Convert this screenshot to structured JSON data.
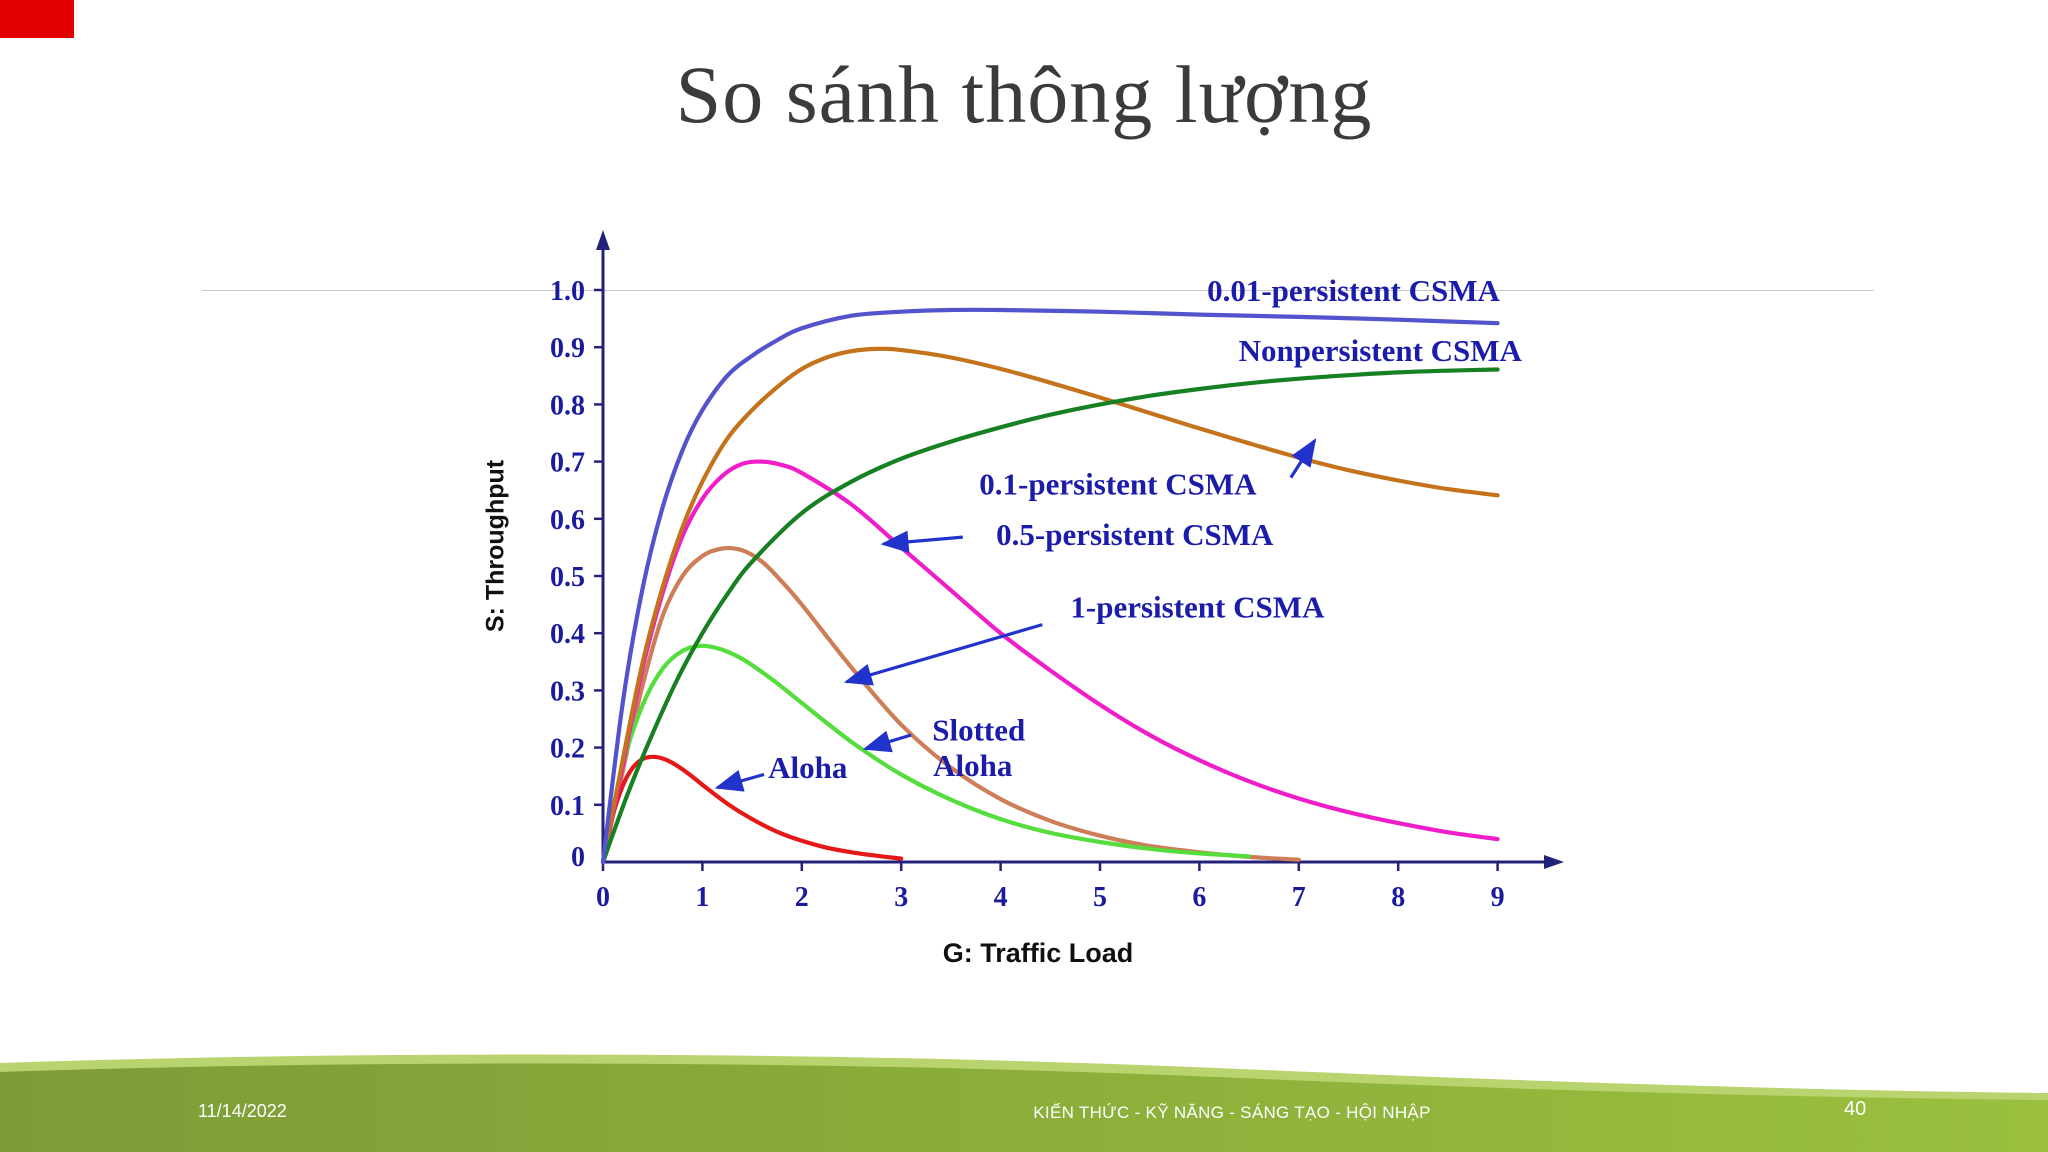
{
  "slide": {
    "title": "So sánh thông lượng",
    "footer": {
      "date": "11/14/2022",
      "center_text": "KIẾN THỨC - KỸ NĂNG - SÁNG TẠO - HỘI NHẬP",
      "page_number": "40"
    },
    "colors": {
      "accent_red": "#e30000",
      "title_color": "#3b3b3b",
      "divider": "#c9c9c9",
      "footer_green_dark": "#7d9c37",
      "footer_green_light": "#9ac03e",
      "footer_green_edge": "#b9d36e"
    }
  },
  "chart_data": {
    "type": "line",
    "title": "",
    "xlabel": "G: Traffic Load",
    "ylabel": "S: Throughput",
    "xlim": [
      0,
      9.5
    ],
    "ylim": [
      0,
      1.05
    ],
    "x_ticks": [
      0,
      1,
      2,
      3,
      4,
      5,
      6,
      7,
      8,
      9
    ],
    "y_ticks": [
      0,
      0.1,
      0.2,
      0.3,
      0.4,
      0.5,
      0.6,
      0.7,
      0.8,
      0.9,
      1.0
    ],
    "y_tick_labels": [
      "0",
      "0.1",
      "0.2",
      "0.3",
      "0.4",
      "0.5",
      "0.6",
      "0.7",
      "0.8",
      "0.9",
      "1.0"
    ],
    "grid": false,
    "legend": "inline-annotations",
    "axis_color": "#22227a",
    "tick_label_color": "#1b1b9e",
    "annotation_color": "#1c1caa",
    "arrow_color": "#2233cc",
    "series": [
      {
        "name": "1-persistent CSMA",
        "color": "#cd7d57",
        "points": [
          [
            0,
            0
          ],
          [
            0.2,
            0.16
          ],
          [
            0.4,
            0.31
          ],
          [
            0.6,
            0.43
          ],
          [
            0.8,
            0.5
          ],
          [
            1,
            0.535
          ],
          [
            1.2,
            0.548
          ],
          [
            1.4,
            0.545
          ],
          [
            1.6,
            0.525
          ],
          [
            1.8,
            0.49
          ],
          [
            2,
            0.45
          ],
          [
            2.5,
            0.34
          ],
          [
            3,
            0.24
          ],
          [
            3.5,
            0.165
          ],
          [
            4,
            0.11
          ],
          [
            4.5,
            0.072
          ],
          [
            5,
            0.046
          ],
          [
            5.5,
            0.028
          ],
          [
            6,
            0.017
          ],
          [
            6.5,
            0.009
          ],
          [
            7,
            0.004
          ]
        ]
      },
      {
        "name": "Slotted Aloha",
        "color": "#55dd3d",
        "points": [
          [
            0,
            0
          ],
          [
            0.2,
            0.17
          ],
          [
            0.4,
            0.275
          ],
          [
            0.6,
            0.338
          ],
          [
            0.8,
            0.369
          ],
          [
            1,
            0.378
          ],
          [
            1.2,
            0.371
          ],
          [
            1.4,
            0.355
          ],
          [
            1.6,
            0.332
          ],
          [
            1.8,
            0.306
          ],
          [
            2,
            0.278
          ],
          [
            2.5,
            0.21
          ],
          [
            3,
            0.153
          ],
          [
            3.5,
            0.109
          ],
          [
            4,
            0.075
          ],
          [
            4.5,
            0.051
          ],
          [
            5,
            0.035
          ],
          [
            5.5,
            0.023
          ],
          [
            6,
            0.015
          ],
          [
            6.5,
            0.01
          ]
        ]
      },
      {
        "name": "Aloha",
        "color": "#e61717",
        "points": [
          [
            0,
            0
          ],
          [
            0.1,
            0.082
          ],
          [
            0.2,
            0.134
          ],
          [
            0.3,
            0.165
          ],
          [
            0.4,
            0.18
          ],
          [
            0.5,
            0.184
          ],
          [
            0.6,
            0.181
          ],
          [
            0.7,
            0.173
          ],
          [
            0.8,
            0.162
          ],
          [
            0.9,
            0.149
          ],
          [
            1,
            0.135
          ],
          [
            1.25,
            0.102
          ],
          [
            1.5,
            0.075
          ],
          [
            1.75,
            0.053
          ],
          [
            2,
            0.037
          ],
          [
            2.25,
            0.025
          ],
          [
            2.5,
            0.017
          ],
          [
            2.75,
            0.011
          ],
          [
            3,
            0.006
          ]
        ]
      },
      {
        "name": "0.5-persistent CSMA",
        "color": "#ef1ec9",
        "points": [
          [
            0,
            0
          ],
          [
            0.2,
            0.17
          ],
          [
            0.4,
            0.34
          ],
          [
            0.6,
            0.47
          ],
          [
            0.8,
            0.57
          ],
          [
            1,
            0.635
          ],
          [
            1.2,
            0.675
          ],
          [
            1.4,
            0.696
          ],
          [
            1.6,
            0.7
          ],
          [
            1.8,
            0.694
          ],
          [
            2,
            0.68
          ],
          [
            2.5,
            0.625
          ],
          [
            3,
            0.55
          ],
          [
            3.5,
            0.475
          ],
          [
            4,
            0.4
          ],
          [
            4.5,
            0.335
          ],
          [
            5,
            0.275
          ],
          [
            5.5,
            0.222
          ],
          [
            6,
            0.178
          ],
          [
            6.5,
            0.141
          ],
          [
            7,
            0.111
          ],
          [
            7.5,
            0.087
          ],
          [
            8,
            0.068
          ],
          [
            8.5,
            0.052
          ],
          [
            9,
            0.04
          ]
        ]
      },
      {
        "name": "0.1-persistent CSMA",
        "color": "#c4731c",
        "points": [
          [
            0,
            0
          ],
          [
            0.2,
            0.18
          ],
          [
            0.4,
            0.35
          ],
          [
            0.6,
            0.48
          ],
          [
            0.8,
            0.585
          ],
          [
            1,
            0.665
          ],
          [
            1.25,
            0.74
          ],
          [
            1.5,
            0.79
          ],
          [
            1.75,
            0.83
          ],
          [
            2,
            0.862
          ],
          [
            2.25,
            0.882
          ],
          [
            2.5,
            0.893
          ],
          [
            2.75,
            0.897
          ],
          [
            3,
            0.895
          ],
          [
            3.5,
            0.882
          ],
          [
            4,
            0.862
          ],
          [
            4.5,
            0.838
          ],
          [
            5,
            0.812
          ],
          [
            5.5,
            0.785
          ],
          [
            6,
            0.758
          ],
          [
            6.5,
            0.732
          ],
          [
            7,
            0.707
          ],
          [
            7.5,
            0.685
          ],
          [
            8,
            0.667
          ],
          [
            8.5,
            0.652
          ],
          [
            9,
            0.641
          ]
        ]
      },
      {
        "name": "Nonpersistent CSMA",
        "color": "#168022",
        "points": [
          [
            0,
            0
          ],
          [
            0.25,
            0.12
          ],
          [
            0.5,
            0.225
          ],
          [
            0.75,
            0.32
          ],
          [
            1,
            0.4
          ],
          [
            1.25,
            0.468
          ],
          [
            1.5,
            0.525
          ],
          [
            2,
            0.61
          ],
          [
            2.5,
            0.665
          ],
          [
            3,
            0.705
          ],
          [
            3.5,
            0.735
          ],
          [
            4,
            0.76
          ],
          [
            4.5,
            0.782
          ],
          [
            5,
            0.8
          ],
          [
            5.5,
            0.815
          ],
          [
            6,
            0.827
          ],
          [
            6.5,
            0.837
          ],
          [
            7,
            0.845
          ],
          [
            7.5,
            0.851
          ],
          [
            8,
            0.856
          ],
          [
            8.5,
            0.859
          ],
          [
            9,
            0.861
          ]
        ]
      },
      {
        "name": "0.01-persistent CSMA",
        "color": "#5253cd",
        "points": [
          [
            0,
            0
          ],
          [
            0.2,
            0.28
          ],
          [
            0.4,
            0.48
          ],
          [
            0.6,
            0.62
          ],
          [
            0.8,
            0.72
          ],
          [
            1,
            0.79
          ],
          [
            1.25,
            0.85
          ],
          [
            1.5,
            0.885
          ],
          [
            1.75,
            0.912
          ],
          [
            2,
            0.933
          ],
          [
            2.5,
            0.955
          ],
          [
            3,
            0.962
          ],
          [
            3.5,
            0.965
          ],
          [
            4,
            0.965
          ],
          [
            5,
            0.962
          ],
          [
            6,
            0.957
          ],
          [
            7,
            0.953
          ],
          [
            8,
            0.948
          ],
          [
            9,
            0.942
          ]
        ]
      }
    ],
    "annotations": [
      {
        "text": "0.01-persistent CSMA",
        "g": 7.55,
        "s": 1.0
      },
      {
        "text": "Nonpersistent CSMA",
        "g": 7.82,
        "s": 0.895
      },
      {
        "text": "0.1-persistent CSMA",
        "g": 5.18,
        "s": 0.662,
        "arrow": {
          "from": [
            6.92,
            0.672
          ],
          "to": [
            7.16,
            0.737
          ]
        }
      },
      {
        "text": "0.5-persistent CSMA",
        "g": 5.35,
        "s": 0.573,
        "arrow": {
          "from": [
            3.62,
            0.568
          ],
          "to": [
            2.82,
            0.556
          ]
        }
      },
      {
        "text": "1-persistent CSMA",
        "g": 5.98,
        "s": 0.447,
        "arrow": {
          "from": [
            4.42,
            0.415
          ],
          "to": [
            2.45,
            0.315
          ]
        }
      },
      {
        "text": "Slotted",
        "g": 3.78,
        "s": 0.232,
        "arrow": {
          "from": [
            3.1,
            0.222
          ],
          "to": [
            2.64,
            0.198
          ]
        }
      },
      {
        "text": "Aloha",
        "g": 3.72,
        "s": 0.17
      },
      {
        "text": "Aloha",
        "g": 2.06,
        "s": 0.166,
        "arrow": {
          "from": [
            1.62,
            0.153
          ],
          "to": [
            1.15,
            0.13
          ]
        }
      }
    ]
  }
}
